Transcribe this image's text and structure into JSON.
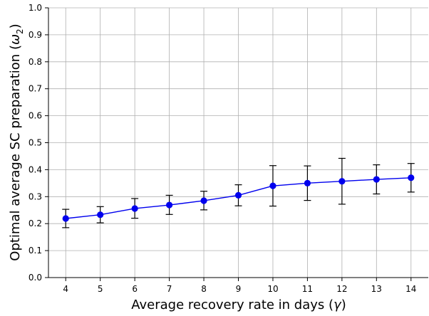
{
  "chart_data": {
    "type": "line",
    "xlabel_text": "Average recovery rate in days (",
    "xlabel_symbol": "γ",
    "xlabel_close": ")",
    "ylabel_text": "Optimal average SC preparation (",
    "ylabel_symbol": "ω",
    "ylabel_subscript": "2",
    "ylabel_close": ")",
    "xlim": [
      3.5,
      14.5
    ],
    "ylim": [
      0.0,
      1.0
    ],
    "x_ticks": [
      4,
      5,
      6,
      7,
      8,
      9,
      10,
      11,
      12,
      13,
      14
    ],
    "y_ticks": [
      0.0,
      0.1,
      0.2,
      0.3,
      0.4,
      0.5,
      0.6,
      0.7,
      0.8,
      0.9,
      1.0
    ],
    "y_tick_labels": [
      "0.0",
      "0.1",
      "0.2",
      "0.3",
      "0.4",
      "0.5",
      "0.6",
      "0.7",
      "0.8",
      "0.9",
      "1.0"
    ],
    "grid": true,
    "series": [
      {
        "color": "#0000ee",
        "x": [
          4,
          5,
          6,
          7,
          8,
          9,
          10,
          11,
          12,
          13,
          14
        ],
        "y": [
          0.219,
          0.233,
          0.256,
          0.269,
          0.285,
          0.305,
          0.34,
          0.35,
          0.357,
          0.364,
          0.37
        ],
        "err_low": [
          0.185,
          0.203,
          0.22,
          0.234,
          0.251,
          0.266,
          0.265,
          0.286,
          0.272,
          0.31,
          0.317
        ],
        "err_high": [
          0.253,
          0.263,
          0.293,
          0.305,
          0.32,
          0.344,
          0.415,
          0.414,
          0.442,
          0.418,
          0.423
        ]
      }
    ]
  }
}
